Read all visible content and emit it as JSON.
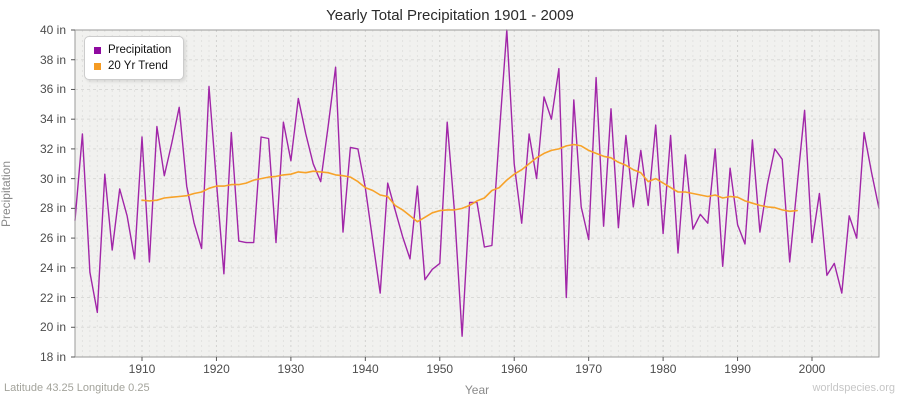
{
  "title": "Yearly Total Precipitation 1901 - 2009",
  "y_axis": {
    "label": "Precipitation",
    "tick_values": [
      40,
      38,
      36,
      34,
      32,
      30,
      28,
      26,
      24,
      22,
      20,
      18
    ],
    "tick_labels": [
      "40 in",
      "38 in",
      "36 in",
      "34 in",
      "32 in",
      "30 in",
      "28 in",
      "26 in",
      "24 in",
      "22 in",
      "20 in",
      "18 in"
    ]
  },
  "x_axis": {
    "label": "Year",
    "tick_values": [
      1910,
      1920,
      1930,
      1940,
      1950,
      1960,
      1970,
      1980,
      1990,
      2000
    ],
    "tick_labels": [
      "1910",
      "1920",
      "1930",
      "1940",
      "1950",
      "1960",
      "1970",
      "1980",
      "1990",
      "2000"
    ]
  },
  "legend": [
    {
      "label": "Precipitation",
      "color": "#8f0aa0"
    },
    {
      "label": "20 Yr Trend",
      "color": "#f59b23"
    }
  ],
  "footer": {
    "left": "Latitude 43.25 Longitude 0.25",
    "right": "worldspecies.org"
  },
  "colors": {
    "precipitation_line": "#a126a8",
    "trend_line": "#f7a229",
    "plot_background": "#f1f1ef",
    "grid_year": "#e2e2e0",
    "grid_decade": "#d2d2d0",
    "grid_horizontal": "#dadad8",
    "plot_border": "#9a9a9a",
    "tick_mark": "#555555"
  },
  "chart_data": {
    "type": "line",
    "title": "Yearly Total Precipitation 1901 - 2009",
    "xlabel": "Year",
    "ylabel": "Precipitation",
    "xlim": [
      1901,
      2009
    ],
    "ylim": [
      18,
      40
    ],
    "y_unit": "in",
    "grid": true,
    "legend_position": "top-left",
    "series": [
      {
        "name": "Precipitation",
        "start_year": 1901,
        "values": [
          27.2,
          33.0,
          23.7,
          21.0,
          30.3,
          25.2,
          29.3,
          27.5,
          24.6,
          32.8,
          24.4,
          33.5,
          30.2,
          32.4,
          34.8,
          29.5,
          27.0,
          25.3,
          36.2,
          29.8,
          23.6,
          33.1,
          25.8,
          25.7,
          25.7,
          32.8,
          32.7,
          25.7,
          33.8,
          31.2,
          35.4,
          33.0,
          31.0,
          29.8,
          33.5,
          37.5,
          26.4,
          32.1,
          32.0,
          29.4,
          25.8,
          22.3,
          29.7,
          27.9,
          26.1,
          24.6,
          29.5,
          23.2,
          23.9,
          24.3,
          33.8,
          27.6,
          19.4,
          28.4,
          28.4,
          25.4,
          25.5,
          33.0,
          40.0,
          31.0,
          27.0,
          33.0,
          30.0,
          35.5,
          34.0,
          37.4,
          22.0,
          35.3,
          28.1,
          25.9,
          36.8,
          26.8,
          34.7,
          26.7,
          32.9,
          28.1,
          31.9,
          28.2,
          33.6,
          26.3,
          32.9,
          25.0,
          31.6,
          26.6,
          27.6,
          27.0,
          32.0,
          24.1,
          30.7,
          26.9,
          25.6,
          32.6,
          26.4,
          29.6,
          32.0,
          31.3,
          24.4,
          29.5,
          34.6,
          25.7,
          29.0,
          23.5,
          24.3,
          22.3,
          27.5,
          26.0,
          33.1,
          30.4,
          28.0
        ]
      },
      {
        "name": "20 Yr Trend",
        "start_year": 1910,
        "values": [
          28.55,
          28.5,
          28.55,
          28.7,
          28.75,
          28.8,
          28.85,
          29.0,
          29.1,
          29.35,
          29.5,
          29.5,
          29.6,
          29.6,
          29.7,
          29.9,
          30.0,
          30.1,
          30.15,
          30.25,
          30.3,
          30.45,
          30.4,
          30.5,
          30.45,
          30.4,
          30.25,
          30.2,
          30.1,
          29.8,
          29.4,
          29.2,
          28.9,
          28.8,
          28.2,
          27.9,
          27.5,
          27.1,
          27.4,
          27.7,
          27.85,
          27.9,
          27.9,
          28.0,
          28.2,
          28.5,
          28.7,
          29.2,
          29.4,
          29.9,
          30.3,
          30.6,
          31.0,
          31.4,
          31.7,
          31.9,
          32.0,
          32.2,
          32.3,
          32.2,
          31.9,
          31.7,
          31.5,
          31.4,
          31.1,
          30.9,
          30.6,
          30.4,
          29.8,
          30.0,
          29.7,
          29.4,
          29.1,
          29.1,
          29.0,
          28.9,
          28.8,
          28.9,
          28.7,
          28.8,
          28.75,
          28.5,
          28.35,
          28.2,
          28.1,
          28.05,
          27.9,
          27.8,
          27.85
        ]
      }
    ]
  }
}
